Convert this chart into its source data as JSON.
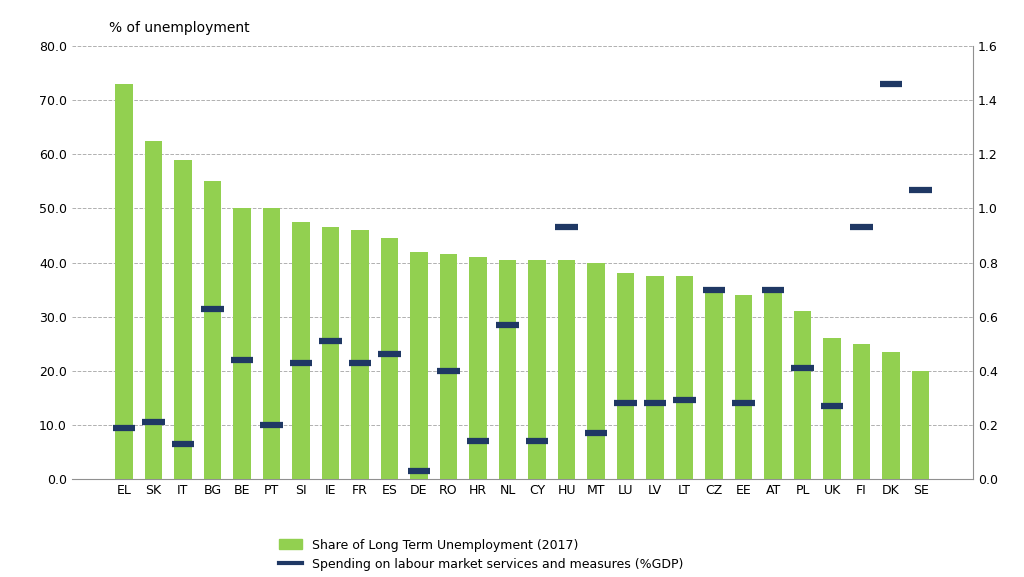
{
  "categories": [
    "EL",
    "SK",
    "IT",
    "BG",
    "BE",
    "PT",
    "SI",
    "IE",
    "FR",
    "ES",
    "DE",
    "RO",
    "HR",
    "NL",
    "CY",
    "HU",
    "MT",
    "LU",
    "LV",
    "LT",
    "CZ",
    "EE",
    "AT",
    "PL",
    "UK",
    "FI",
    "DK",
    "SE"
  ],
  "ltu_share": [
    73.0,
    62.5,
    59.0,
    55.0,
    50.0,
    50.0,
    47.5,
    46.5,
    46.0,
    44.5,
    42.0,
    41.5,
    41.0,
    40.5,
    40.5,
    40.5,
    40.0,
    38.0,
    37.5,
    37.5,
    35.0,
    34.0,
    34.5,
    31.0,
    26.0,
    25.0,
    23.5,
    20.0
  ],
  "spending": [
    0.19,
    0.21,
    0.13,
    0.63,
    0.44,
    0.2,
    0.43,
    0.51,
    0.43,
    0.46,
    0.03,
    0.4,
    0.14,
    0.57,
    0.14,
    0.93,
    0.17,
    0.28,
    0.28,
    0.29,
    0.7,
    0.28,
    0.7,
    0.41,
    0.27,
    0.93,
    1.46,
    1.07
  ],
  "bar_color": "#92d050",
  "line_color": "#1f3864",
  "ylabel_left": "% of unemployment",
  "ylim_left": [
    0,
    80
  ],
  "ylim_right": [
    0.0,
    1.6
  ],
  "yticks_left": [
    0.0,
    10.0,
    20.0,
    30.0,
    40.0,
    50.0,
    60.0,
    70.0,
    80.0
  ],
  "yticks_right": [
    0.0,
    0.2,
    0.4,
    0.6,
    0.8,
    1.0,
    1.2,
    1.4,
    1.6
  ],
  "legend_bar": "Share of Long Term Unemployment (2017)",
  "legend_line": "Spending on labour market services and measures (%GDP)",
  "background_color": "#ffffff",
  "grid_color": "#b0b0b0"
}
